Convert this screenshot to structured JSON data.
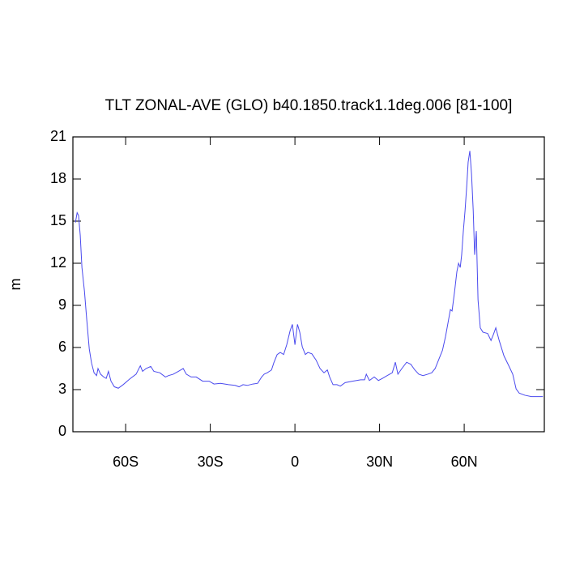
{
  "chart_data": {
    "type": "line",
    "title": "TLT ZONAL-AVE (GLO) b40.1850.track1.1deg.006 [81-100]",
    "y_label": "m",
    "xlim": [
      -78.7,
      88.4
    ],
    "ylim": [
      0,
      21
    ],
    "xticks": [
      {
        "value": -60,
        "label": "60S"
      },
      {
        "value": -30,
        "label": "30S"
      },
      0,
      {
        "value": 30,
        "label": "30N"
      },
      {
        "value": 60,
        "label": "60N"
      }
    ],
    "yticks": [
      0,
      3,
      6,
      9,
      12,
      15,
      18,
      21
    ],
    "grid": false,
    "series": [
      {
        "color": "#4a4aee",
        "x": [
          -77.8,
          -77.2,
          -76.7,
          -76.1,
          -75.5,
          -74.6,
          -73.8,
          -72.9,
          -72.1,
          -71.2,
          -70.3,
          -69.8,
          -68.9,
          -67.8,
          -66.9,
          -66.1,
          -65.2,
          -64.0,
          -62.6,
          -60.9,
          -58.6,
          -56.3,
          -54.8,
          -54.0,
          -52.8,
          -51.1,
          -50.0,
          -47.9,
          -45.9,
          -44.8,
          -43.1,
          -41.3,
          -39.6,
          -38.5,
          -36.8,
          -35.0,
          -32.7,
          -30.4,
          -28.7,
          -26.4,
          -23.5,
          -21.2,
          -19.8,
          -18.4,
          -16.9,
          -14.9,
          -13.2,
          -11.8,
          -10.9,
          -9.8,
          -8.3,
          -7.5,
          -6.3,
          -5.2,
          -4.0,
          -2.9,
          -1.7,
          -0.9,
          0,
          0.9,
          1.7,
          2.6,
          3.7,
          4.6,
          6.0,
          7.5,
          8.9,
          10.3,
          11.5,
          12.3,
          13.5,
          14.9,
          16.1,
          17.8,
          20.4,
          23.3,
          24.7,
          25.3,
          26.4,
          28.1,
          29.6,
          31.0,
          32.7,
          34.5,
          35.6,
          36.5,
          37.9,
          39.6,
          41.1,
          42.5,
          43.9,
          45.4,
          47.1,
          48.5,
          49.7,
          51.1,
          52.3,
          53.4,
          54.3,
          55.1,
          55.7,
          56.6,
          57.4,
          58.0,
          58.6,
          59.1,
          59.7,
          60.3,
          60.9,
          61.4,
          62.0,
          62.6,
          63.2,
          63.7,
          64.3,
          64.9,
          65.7,
          66.6,
          68.3,
          69.5,
          70.3,
          71.2,
          72.4,
          74.1,
          75.8,
          77.2,
          78.4,
          79.5,
          81.5,
          83.8,
          86.1,
          87.9
        ],
        "values": [
          14.9,
          15.6,
          15.4,
          14.0,
          11.7,
          10.0,
          8.0,
          5.9,
          4.9,
          4.2,
          4.0,
          4.5,
          4.1,
          3.9,
          3.8,
          4.3,
          3.6,
          3.2,
          3.1,
          3.35,
          3.75,
          4.1,
          4.7,
          4.3,
          4.5,
          4.65,
          4.3,
          4.2,
          3.9,
          4.0,
          4.1,
          4.3,
          4.5,
          4.1,
          3.9,
          3.9,
          3.6,
          3.6,
          3.4,
          3.45,
          3.35,
          3.3,
          3.2,
          3.35,
          3.3,
          3.4,
          3.45,
          3.9,
          4.1,
          4.2,
          4.4,
          4.9,
          5.5,
          5.65,
          5.5,
          6.2,
          7.2,
          7.65,
          6.2,
          7.65,
          7.1,
          6.05,
          5.5,
          5.65,
          5.55,
          5.1,
          4.5,
          4.2,
          4.4,
          3.9,
          3.35,
          3.35,
          3.25,
          3.5,
          3.6,
          3.7,
          3.7,
          4.1,
          3.65,
          3.9,
          3.65,
          3.8,
          4.0,
          4.2,
          4.95,
          4.1,
          4.5,
          4.95,
          4.8,
          4.4,
          4.1,
          4.0,
          4.1,
          4.2,
          4.5,
          5.2,
          5.8,
          6.8,
          7.8,
          8.7,
          8.6,
          10.0,
          11.4,
          12.0,
          11.7,
          12.6,
          14.3,
          15.75,
          17.5,
          19.2,
          20.0,
          18.35,
          15.75,
          12.6,
          14.3,
          9.4,
          7.4,
          7.1,
          7.0,
          6.5,
          6.9,
          7.4,
          6.5,
          5.4,
          4.7,
          4.1,
          3.05,
          2.75,
          2.6,
          2.5,
          2.5,
          2.5
        ]
      }
    ]
  }
}
